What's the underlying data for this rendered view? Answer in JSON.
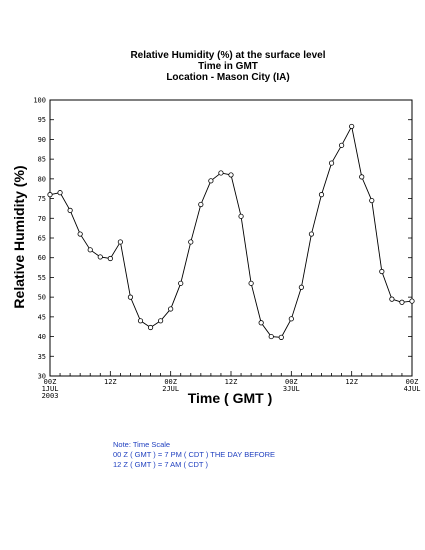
{
  "title_lines": [
    "Relative Humidity (%) at the surface level",
    "Time in GMT",
    "Location - Mason City (IA)"
  ],
  "note": {
    "line1": "Note: Time Scale",
    "line2": "00 Z ( GMT ) = 7 PM ( CDT ) THE DAY BEFORE",
    "line3": "12 Z ( GMT ) = 7 AM ( CDT )",
    "color": "#1f3fbf"
  },
  "chart_data": {
    "type": "line",
    "xlabel": "Time ( GMT )",
    "ylabel": "Relative Humidity (%)",
    "ylim": [
      30,
      100
    ],
    "yticks": [
      30,
      35,
      40,
      45,
      50,
      55,
      60,
      65,
      70,
      75,
      80,
      85,
      90,
      95,
      100
    ],
    "xlim_hours": [
      0,
      72
    ],
    "x_tick_labels": [
      {
        "hour": 0,
        "lines": [
          "00Z",
          "1JUL",
          "2003"
        ]
      },
      {
        "hour": 12,
        "lines": [
          "12Z"
        ]
      },
      {
        "hour": 24,
        "lines": [
          "00Z",
          "2JUL"
        ]
      },
      {
        "hour": 36,
        "lines": [
          "12Z"
        ]
      },
      {
        "hour": 48,
        "lines": [
          "00Z",
          "3JUL"
        ]
      },
      {
        "hour": 60,
        "lines": [
          "12Z"
        ]
      },
      {
        "hour": 72,
        "lines": [
          "00Z",
          "4JUL"
        ]
      }
    ],
    "grid": false,
    "series": [
      {
        "marker": "open-circle",
        "color": "#000000",
        "points": [
          [
            0,
            76
          ],
          [
            2,
            76.5
          ],
          [
            4,
            72
          ],
          [
            6,
            66
          ],
          [
            8,
            62
          ],
          [
            10,
            60.2
          ],
          [
            12,
            59.8
          ],
          [
            14,
            64
          ],
          [
            16,
            50
          ],
          [
            18,
            44
          ],
          [
            20,
            42.3
          ],
          [
            22,
            44
          ],
          [
            24,
            47
          ],
          [
            26,
            53.5
          ],
          [
            28,
            64
          ],
          [
            30,
            73.5
          ],
          [
            32,
            79.5
          ],
          [
            34,
            81.5
          ],
          [
            36,
            81
          ],
          [
            38,
            70.5
          ],
          [
            40,
            53.5
          ],
          [
            42,
            43.5
          ],
          [
            44,
            40
          ],
          [
            46,
            39.8
          ],
          [
            48,
            44.5
          ],
          [
            50,
            52.5
          ],
          [
            52,
            66
          ],
          [
            54,
            76
          ],
          [
            56,
            84
          ],
          [
            58,
            88.5
          ],
          [
            60,
            93.3
          ],
          [
            62,
            80.5
          ],
          [
            64,
            74.5
          ],
          [
            66,
            56.5
          ],
          [
            68,
            49.5
          ],
          [
            70,
            48.7
          ],
          [
            72,
            49
          ]
        ]
      }
    ]
  }
}
